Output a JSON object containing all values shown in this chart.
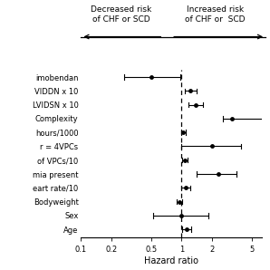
{
  "labels": [
    "imobendan",
    "VIDDN x 10",
    "LVIDSN x 10",
    "Complexity",
    "hours/1000",
    "r = 4VPCs",
    "of VPCs/10",
    "mia present",
    "eart rate/10",
    "Bodyweight",
    "Sex",
    "Age"
  ],
  "hr": [
    0.5,
    1.22,
    1.38,
    3.2,
    1.04,
    2.0,
    1.07,
    2.3,
    1.1,
    0.96,
    1.0,
    1.12
  ],
  "ci_low": [
    0.27,
    1.08,
    1.18,
    2.6,
    1.0,
    1.0,
    1.01,
    1.4,
    1.0,
    0.9,
    0.52,
    1.02
  ],
  "ci_high": [
    0.97,
    1.4,
    1.62,
    6.5,
    1.1,
    3.9,
    1.14,
    3.5,
    1.22,
    1.02,
    1.85,
    1.24
  ],
  "ref_line": 1.0,
  "xmin": 0.1,
  "xmax": 6.3,
  "xticks": [
    0.1,
    0.2,
    0.5,
    1.0,
    2.0,
    5.0
  ],
  "xtick_labels": [
    "0.1",
    "0.2",
    "0.5",
    "1",
    "2",
    "5"
  ],
  "xlabel": "Hazard ratio",
  "title_left": "Decreased risk\nof CHF or SCD",
  "title_right": "Increased risk\nof CHF or  SCD",
  "dot_color": "black",
  "line_color": "black",
  "background": "white",
  "figsize": [
    2.98,
    2.98
  ],
  "dpi": 100
}
